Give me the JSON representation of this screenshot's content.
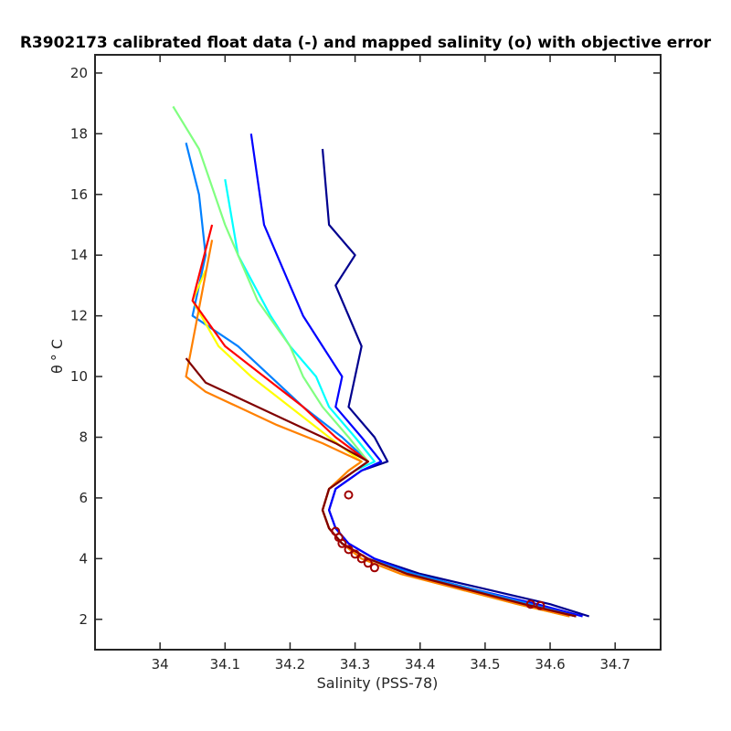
{
  "chart_data": {
    "type": "line",
    "title": "R3902173 calibrated float data (-) and mapped salinity (o) with objective error",
    "xlabel": "Salinity (PSS-78)",
    "ylabel_symbol": "θ",
    "ylabel_unit": "° C",
    "xlim": [
      33.9,
      34.77
    ],
    "ylim": [
      1.0,
      20.6
    ],
    "xticks": [
      34,
      34.1,
      34.2,
      34.3,
      34.4,
      34.5,
      34.6,
      34.7
    ],
    "xtick_labels": [
      "34",
      "34.1",
      "34.2",
      "34.3",
      "34.4",
      "34.5",
      "34.6",
      "34.7"
    ],
    "yticks": [
      2,
      4,
      6,
      8,
      10,
      12,
      14,
      16,
      18,
      20
    ],
    "ytick_labels": [
      "2",
      "4",
      "6",
      "8",
      "10",
      "12",
      "14",
      "16",
      "18",
      "20"
    ],
    "grid": false,
    "colormap": [
      "#00008f",
      "#0000ff",
      "#0080ff",
      "#00ffff",
      "#80ff80",
      "#ffff00",
      "#ff8000",
      "#ff0000",
      "#800000"
    ],
    "series": [
      {
        "color": "#00008f",
        "x": [
          34.66,
          34.6,
          34.5,
          34.4,
          34.33,
          34.29,
          34.27,
          34.26,
          34.27,
          34.31,
          34.35,
          34.33,
          34.29,
          34.3,
          34.31,
          34.29,
          34.27,
          34.3,
          34.26,
          34.25
        ],
        "y": [
          2.1,
          2.5,
          3.0,
          3.5,
          4.0,
          4.5,
          5.0,
          5.6,
          6.3,
          6.9,
          7.2,
          8.0,
          9.0,
          10.0,
          11.0,
          12.0,
          13.0,
          14.0,
          15.0,
          17.5
        ]
      },
      {
        "color": "#0000ff",
        "x": [
          34.65,
          34.58,
          34.48,
          34.39,
          34.33,
          34.29,
          34.27,
          34.26,
          34.27,
          34.31,
          34.34,
          34.31,
          34.27,
          34.28,
          34.25,
          34.22,
          34.2,
          34.16,
          34.14
        ],
        "y": [
          2.1,
          2.5,
          3.0,
          3.5,
          4.0,
          4.5,
          5.0,
          5.6,
          6.3,
          6.9,
          7.2,
          8.0,
          9.0,
          10.0,
          11.0,
          12.0,
          13.0,
          15.0,
          18.0
        ]
      },
      {
        "color": "#0080ff",
        "x": [
          34.64,
          34.57,
          34.48,
          34.39,
          34.32,
          34.28,
          34.26,
          34.25,
          34.26,
          34.3,
          34.32,
          34.28,
          34.22,
          34.17,
          34.12,
          34.05,
          34.07,
          34.06,
          34.04
        ],
        "y": [
          2.1,
          2.5,
          3.0,
          3.5,
          4.0,
          4.5,
          5.0,
          5.6,
          6.3,
          6.9,
          7.2,
          8.0,
          9.0,
          10.0,
          11.0,
          12.0,
          14.0,
          16.0,
          17.7
        ]
      },
      {
        "color": "#00ffff",
        "x": [
          34.64,
          34.56,
          34.47,
          34.38,
          34.32,
          34.28,
          34.26,
          34.25,
          34.26,
          34.3,
          34.33,
          34.3,
          34.26,
          34.24,
          34.2,
          34.17,
          34.12,
          34.1
        ],
        "y": [
          2.1,
          2.5,
          3.0,
          3.5,
          4.0,
          4.5,
          5.0,
          5.6,
          6.3,
          6.9,
          7.2,
          8.0,
          9.0,
          10.0,
          11.0,
          12.0,
          14.0,
          16.5
        ]
      },
      {
        "color": "#80ff80",
        "x": [
          34.63,
          34.55,
          34.46,
          34.38,
          34.32,
          34.28,
          34.26,
          34.25,
          34.26,
          34.3,
          34.32,
          34.29,
          34.25,
          34.22,
          34.2,
          34.15,
          34.1,
          34.06,
          34.02
        ],
        "y": [
          2.1,
          2.5,
          3.0,
          3.5,
          4.0,
          4.5,
          5.0,
          5.6,
          6.3,
          6.9,
          7.2,
          8.0,
          9.0,
          10.0,
          11.0,
          12.5,
          15.0,
          17.5,
          18.9
        ]
      },
      {
        "color": "#ffff00",
        "x": [
          34.63,
          34.55,
          34.46,
          34.37,
          34.31,
          34.28,
          34.26,
          34.25,
          34.26,
          34.29,
          34.31,
          34.26,
          34.2,
          34.14,
          34.09,
          34.05,
          34.07
        ],
        "y": [
          2.1,
          2.5,
          3.0,
          3.5,
          4.0,
          4.5,
          5.0,
          5.6,
          6.3,
          6.9,
          7.2,
          8.0,
          9.0,
          10.0,
          11.0,
          12.5,
          13.5
        ]
      },
      {
        "color": "#ff8000",
        "x": [
          34.63,
          34.55,
          34.46,
          34.37,
          34.31,
          34.28,
          34.26,
          34.25,
          34.26,
          34.29,
          34.31,
          34.25,
          34.18,
          34.12,
          34.07,
          34.04,
          34.08
        ],
        "y": [
          2.1,
          2.5,
          3.0,
          3.5,
          4.0,
          4.5,
          5.0,
          5.6,
          6.3,
          6.9,
          7.2,
          7.8,
          8.4,
          9.0,
          9.5,
          10.0,
          14.5
        ]
      },
      {
        "color": "#ff0000",
        "x": [
          34.64,
          34.56,
          34.47,
          34.38,
          34.32,
          34.28,
          34.26,
          34.25,
          34.26,
          34.3,
          34.32,
          34.27,
          34.22,
          34.16,
          34.1,
          34.05,
          34.08
        ],
        "y": [
          2.1,
          2.5,
          3.0,
          3.5,
          4.0,
          4.5,
          5.0,
          5.6,
          6.3,
          6.9,
          7.2,
          8.0,
          9.0,
          10.0,
          11.0,
          12.5,
          15.0
        ]
      },
      {
        "color": "#800000",
        "x": [
          34.64,
          34.56,
          34.47,
          34.38,
          34.32,
          34.28,
          34.26,
          34.25,
          34.26,
          34.3,
          34.32,
          34.27,
          34.2,
          34.13,
          34.07,
          34.04
        ],
        "y": [
          2.1,
          2.5,
          3.0,
          3.5,
          4.0,
          4.5,
          5.0,
          5.6,
          6.3,
          6.9,
          7.2,
          7.8,
          8.5,
          9.2,
          9.8,
          10.6
        ]
      }
    ],
    "mapped_points": {
      "color": "#a00000",
      "x": [
        34.27,
        34.275,
        34.28,
        34.29,
        34.3,
        34.31,
        34.32,
        34.33,
        34.57,
        34.585,
        34.29
      ],
      "y": [
        4.9,
        4.7,
        4.5,
        4.3,
        4.15,
        4.0,
        3.85,
        3.7,
        2.5,
        2.45,
        6.1
      ]
    }
  }
}
